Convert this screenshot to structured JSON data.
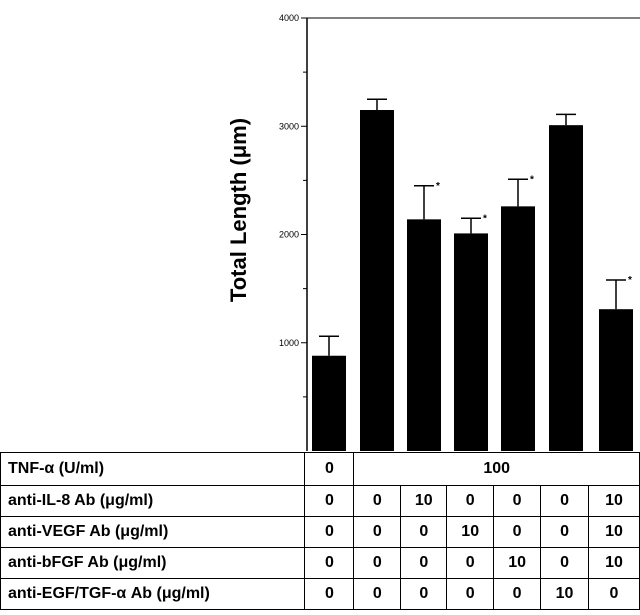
{
  "chart_data": {
    "type": "bar",
    "ylabel": "Total Length (μm)",
    "ylim": [
      0,
      4000
    ],
    "yticks": [
      1000,
      2000,
      3000,
      4000
    ],
    "values": [
      880,
      3150,
      2140,
      2010,
      2260,
      3010,
      1310
    ],
    "errors": [
      180,
      100,
      310,
      140,
      250,
      100,
      270
    ],
    "significant": [
      false,
      false,
      true,
      true,
      true,
      false,
      true
    ],
    "significance_marker": "*",
    "grid": false,
    "legend": "none"
  },
  "table": {
    "rows": [
      {
        "label": "TNF-α (U/ml)",
        "values": [
          "0",
          "100"
        ]
      },
      {
        "label": "anti-IL-8 Ab (μg/ml)",
        "values": [
          "0",
          "0",
          "10",
          "0",
          "0",
          "0",
          "10"
        ]
      },
      {
        "label": "anti-VEGF Ab (μg/ml)",
        "values": [
          "0",
          "0",
          "0",
          "10",
          "0",
          "0",
          "10"
        ]
      },
      {
        "label": "anti-bFGF Ab (μg/ml)",
        "values": [
          "0",
          "0",
          "0",
          "0",
          "10",
          "0",
          "10"
        ]
      },
      {
        "label": "anti-EGF/TGF-α Ab (μg/ml)",
        "values": [
          "0",
          "0",
          "0",
          "0",
          "0",
          "10",
          "0"
        ]
      }
    ]
  }
}
